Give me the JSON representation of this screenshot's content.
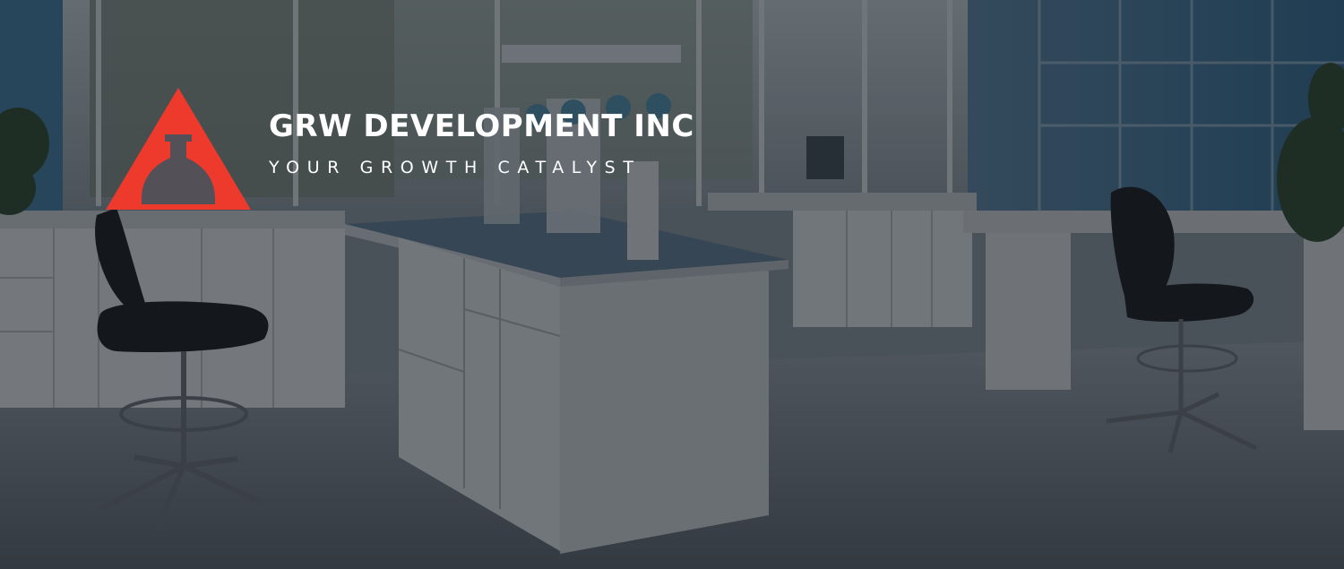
{
  "brand": {
    "name": "GRW DEVELOPMENT INC",
    "tagline": "YOUR GROWTH CATALYST",
    "accent_color": "#ee3a2c",
    "logo_icon": "red-triangle-flask-logo-icon"
  },
  "hero": {
    "background": "laboratory-interior-photo",
    "overlay_color": "#14181e"
  }
}
